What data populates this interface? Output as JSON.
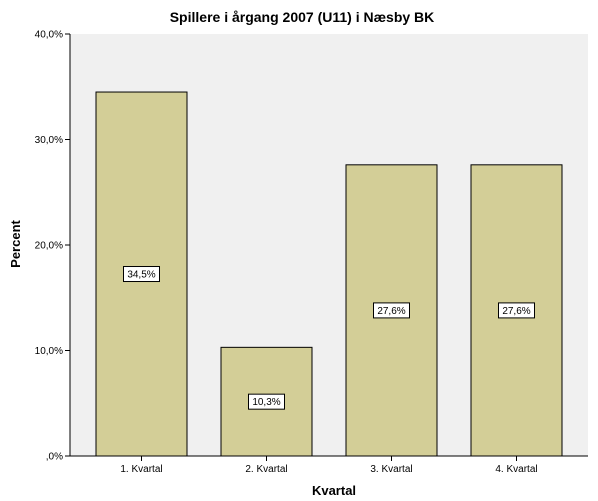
{
  "chart_data": {
    "type": "bar",
    "title": "Spillere i årgang 2007 (U11) i Næsby BK",
    "xlabel": "Kvartal",
    "ylabel": "Percent",
    "categories": [
      "1. Kvartal",
      "2. Kvartal",
      "3. Kvartal",
      "4. Kvartal"
    ],
    "values": [
      34.5,
      10.3,
      27.6,
      27.6
    ],
    "value_labels": [
      "34,5%",
      "10,3%",
      "27,6%",
      "27,6%"
    ],
    "yticks": [
      0,
      10,
      20,
      30,
      40
    ],
    "ytick_labels": [
      ",0%",
      "10,0%",
      "20,0%",
      "30,0%",
      "40,0%"
    ],
    "ylim": [
      0,
      40
    ],
    "grid": false,
    "colors": {
      "plot_background": "#f0f0f0",
      "bar_fill": "#d3ce97",
      "bar_stroke": "#000000"
    }
  }
}
